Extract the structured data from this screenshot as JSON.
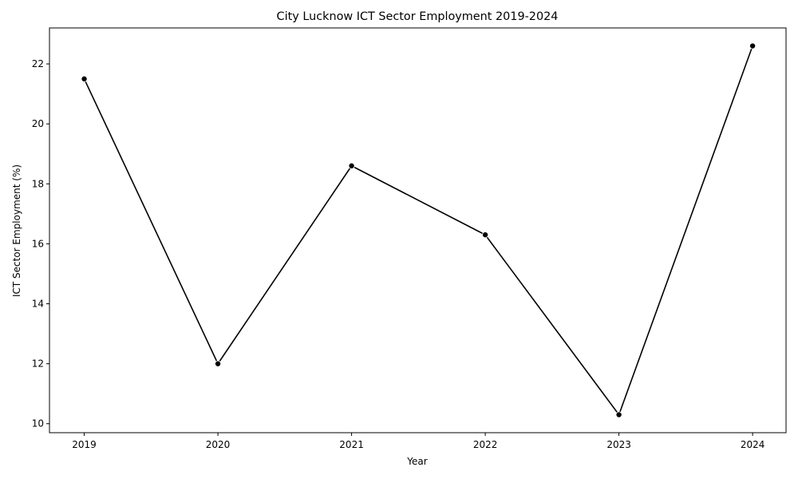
{
  "chart_data": {
    "type": "line",
    "title": "City Lucknow ICT Sector Employment 2019-2024",
    "xlabel": "Year",
    "ylabel": "ICT Sector Employment (%)",
    "x": [
      2019,
      2020,
      2021,
      2022,
      2023,
      2024
    ],
    "x_tick_labels": [
      "2019",
      "2020",
      "2021",
      "2022",
      "2023",
      "2024"
    ],
    "series": [
      {
        "values": [
          21.5,
          12.0,
          18.6,
          16.3,
          10.3,
          22.6
        ]
      }
    ],
    "y_ticks": [
      10,
      12,
      14,
      16,
      18,
      20,
      22
    ],
    "y_tick_labels": [
      "10",
      "12",
      "14",
      "16",
      "18",
      "20",
      "22"
    ],
    "xlim": [
      2018.74,
      2024.25
    ],
    "ylim": [
      9.7,
      23.2
    ],
    "grid": false,
    "legend": "none",
    "colors": {
      "line": "#000000",
      "marker": "#000000",
      "axes": "#000000"
    }
  }
}
